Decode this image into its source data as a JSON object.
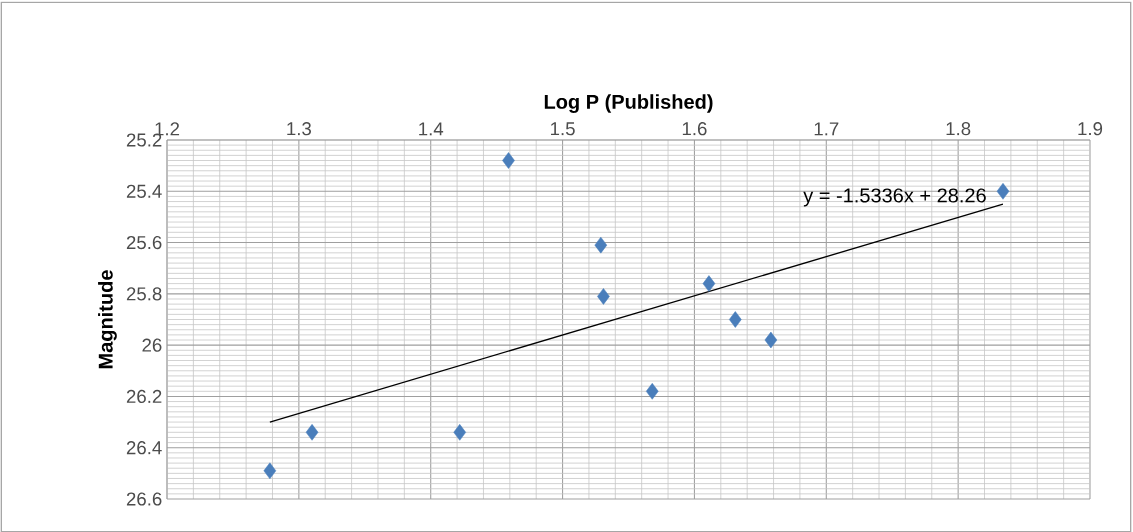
{
  "chart_data": {
    "type": "scatter",
    "xlabel": "Log P (Published)",
    "ylabel": "Magnitude",
    "xlim": [
      1.2,
      1.9
    ],
    "ylim": [
      26.6,
      25.2
    ],
    "xticks": [
      1.2,
      1.3,
      1.4,
      1.5,
      1.6,
      1.7,
      1.8,
      1.9
    ],
    "yticks": [
      25.2,
      25.4,
      25.6,
      25.8,
      26,
      26.2,
      26.4,
      26.6
    ],
    "grid": true,
    "marker": "diamond",
    "series": [
      {
        "color": "#4a7ebb",
        "x": [
          1.278,
          1.31,
          1.422,
          1.459,
          1.529,
          1.531,
          1.568,
          1.611,
          1.631,
          1.658,
          1.834
        ],
        "values": [
          26.49,
          26.34,
          26.34,
          25.28,
          25.61,
          25.81,
          26.18,
          25.76,
          25.9,
          25.98,
          25.4
        ]
      },
      {
        "type": "line",
        "color": "#000000",
        "marker": "none",
        "x": [
          1.278,
          1.834
        ],
        "values": [
          26.3,
          25.45
        ]
      }
    ],
    "annotations": [
      {
        "text": "y = -1.5336x + 28.26",
        "x": 1.834,
        "y": 25.45
      }
    ]
  }
}
